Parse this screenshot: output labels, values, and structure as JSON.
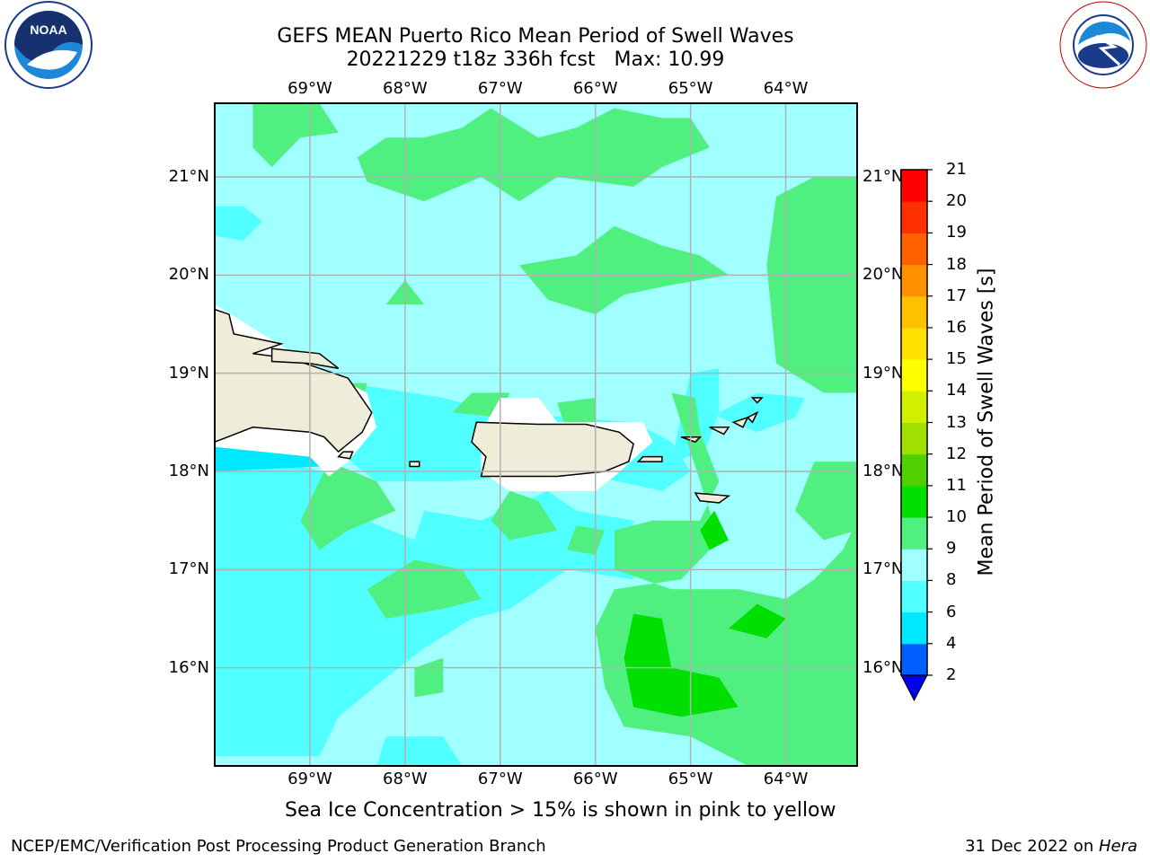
{
  "title": {
    "line1": "GEFS MEAN Puerto Rico Mean Period of Swell Waves",
    "run": "20221229 t18z 336h fcst",
    "max": "Max: 10.99"
  },
  "map": {
    "lon_ticks": [
      "69°W",
      "68°W",
      "67°W",
      "66°W",
      "65°W",
      "64°W"
    ],
    "lat_ticks": [
      "21°N",
      "20°N",
      "19°N",
      "18°N",
      "17°N",
      "16°N"
    ],
    "extent": {
      "lon_min": -70.0,
      "lon_max": -63.25,
      "lat_min": 15.0,
      "lat_max": 21.75
    },
    "land_color": "#efecd9",
    "grid_color": "#b0b0b0"
  },
  "colorbar": {
    "label": "Mean Period of Swell Waves [s]",
    "ticks": [
      "21",
      "20",
      "19",
      "18",
      "17",
      "16",
      "15",
      "14",
      "13",
      "12",
      "11",
      "10",
      "9",
      "8",
      "6",
      "4",
      "2"
    ],
    "levels": [
      2,
      4,
      6,
      8,
      9,
      10,
      11,
      12,
      13,
      14,
      15,
      16,
      17,
      18,
      19,
      20,
      21
    ],
    "colors": [
      "#0060ff",
      "#00e8ff",
      "#50ffff",
      "#a0ffff",
      "#50f080",
      "#00e000",
      "#50d000",
      "#a0e000",
      "#d0f000",
      "#ffff00",
      "#ffe000",
      "#ffc000",
      "#ff9000",
      "#ff6000",
      "#ff3000",
      "#ff0000"
    ],
    "under_color": "#0000ee"
  },
  "note": "Sea Ice Concentration > 15% is shown in pink to yellow",
  "credit": "NCEP/EMC/Verification Post Processing Product Generation Branch",
  "stamp": {
    "date": "31 Dec 2022 on ",
    "machine": "Hera"
  },
  "logos": {
    "left": "noara-logo",
    "right": "nws-logo",
    "noaa_text": "NOAA",
    "nws_text": "NATIONAL WEATHER SERVICE"
  }
}
